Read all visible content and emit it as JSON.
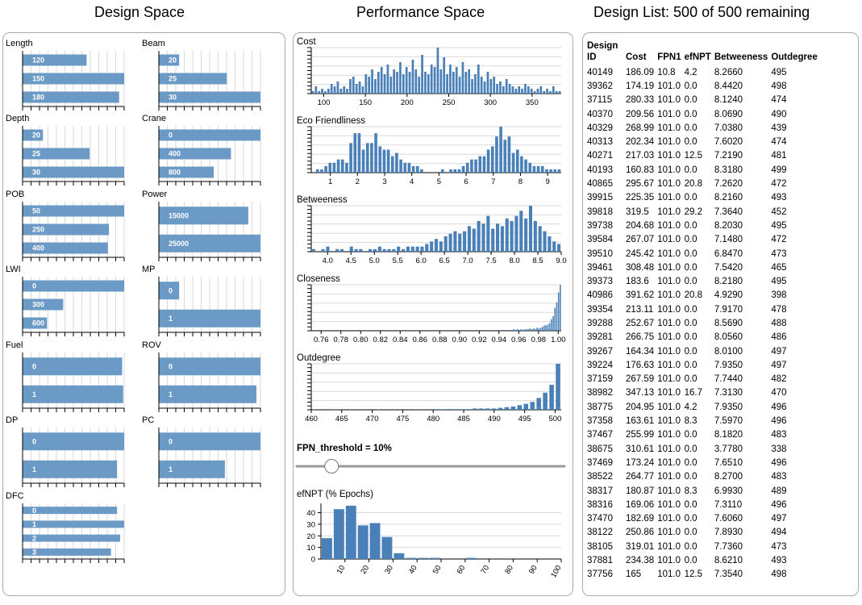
{
  "titles": {
    "design_space": "Design Space",
    "performance_space": "Performance Space",
    "design_list": "Design List: 500 of 500 remaining"
  },
  "colors": {
    "bar": "#6b9ac6",
    "hist": "#4a80b8",
    "axis": "#000000",
    "grid": "#d9d9d9",
    "slider_track": "#999999"
  },
  "design_space": [
    {
      "name": "Length",
      "bars": [
        {
          "label": "120",
          "value": 0.63
        },
        {
          "label": "150",
          "value": 1.0
        },
        {
          "label": "180",
          "value": 0.95
        }
      ]
    },
    {
      "name": "Beam",
      "bars": [
        {
          "label": "20",
          "value": 0.2
        },
        {
          "label": "25",
          "value": 0.67
        },
        {
          "label": "30",
          "value": 1.0
        }
      ]
    },
    {
      "name": "Depth",
      "bars": [
        {
          "label": "20",
          "value": 0.2
        },
        {
          "label": "25",
          "value": 0.66
        },
        {
          "label": "30",
          "value": 1.0
        }
      ]
    },
    {
      "name": "Crane",
      "bars": [
        {
          "label": "0",
          "value": 1.0
        },
        {
          "label": "400",
          "value": 0.71
        },
        {
          "label": "800",
          "value": 0.54
        }
      ]
    },
    {
      "name": "POB",
      "bars": [
        {
          "label": "50",
          "value": 1.0
        },
        {
          "label": "250",
          "value": 0.85
        },
        {
          "label": "400",
          "value": 0.84
        }
      ]
    },
    {
      "name": "Power",
      "bars": [
        {
          "label": "15000",
          "value": 0.88
        },
        {
          "label": "25000",
          "value": 1.0
        }
      ]
    },
    {
      "name": "LWI",
      "bars": [
        {
          "label": "0",
          "value": 1.0
        },
        {
          "label": "300",
          "value": 0.4
        },
        {
          "label": "600",
          "value": 0.24
        }
      ]
    },
    {
      "name": "MP",
      "bars": [
        {
          "label": "0",
          "value": 0.2
        },
        {
          "label": "1",
          "value": 1.0
        }
      ]
    },
    {
      "name": "Fuel",
      "bars": [
        {
          "label": "0",
          "value": 0.98
        },
        {
          "label": "1",
          "value": 0.99
        }
      ]
    },
    {
      "name": "ROV",
      "bars": [
        {
          "label": "0",
          "value": 1.0
        },
        {
          "label": "1",
          "value": 0.96
        }
      ]
    },
    {
      "name": "DP",
      "bars": [
        {
          "label": "0",
          "value": 1.0
        },
        {
          "label": "1",
          "value": 0.93
        }
      ]
    },
    {
      "name": "PC",
      "bars": [
        {
          "label": "0",
          "value": 1.0
        },
        {
          "label": "1",
          "value": 0.65
        }
      ]
    },
    {
      "name": "DFC",
      "bars": [
        {
          "label": "0",
          "value": 0.93
        },
        {
          "label": "1",
          "value": 1.0
        },
        {
          "label": "2",
          "value": 0.96
        },
        {
          "label": "3",
          "value": 0.87
        }
      ]
    }
  ],
  "performance_space": {
    "histograms": [
      {
        "name": "Cost",
        "domain": [
          85,
          385
        ],
        "ticks": [
          "100",
          "150",
          "200",
          "250",
          "300",
          "350"
        ],
        "values": [
          1,
          3,
          1,
          2,
          1,
          2,
          4,
          3,
          5,
          2,
          3,
          2,
          6,
          7,
          4,
          5,
          3,
          8,
          7,
          10,
          6,
          9,
          11,
          8,
          12,
          7,
          10,
          9,
          13,
          8,
          11,
          9,
          14,
          10,
          7,
          16,
          9,
          8,
          12,
          11,
          19,
          10,
          15,
          8,
          12,
          9,
          11,
          7,
          13,
          9,
          10,
          6,
          8,
          12,
          7,
          5,
          9,
          6,
          7,
          4,
          5,
          3,
          6,
          4,
          3,
          2,
          3,
          2,
          4,
          3,
          2,
          1,
          2,
          3,
          1,
          2,
          1,
          3,
          1,
          1
        ]
      },
      {
        "name": "Eco Friendliness",
        "domain": [
          0.3,
          9.5
        ],
        "ticks": [
          "1",
          "2",
          "3",
          "4",
          "5",
          "6",
          "7",
          "8",
          "9"
        ],
        "values": [
          0,
          1,
          1,
          2,
          3,
          3,
          4,
          4,
          3,
          9,
          12,
          12,
          7,
          9,
          9,
          12,
          8,
          7,
          7,
          5,
          6,
          4,
          3,
          3,
          2,
          2,
          1,
          0,
          0,
          0,
          0,
          1,
          0,
          1,
          1,
          1,
          2,
          3,
          4,
          4,
          5,
          5,
          7,
          8,
          11,
          14,
          10,
          11,
          6,
          7,
          5,
          4,
          3,
          2,
          2,
          2,
          1,
          1,
          1,
          1
        ]
      },
      {
        "name": "Betweeness",
        "domain": [
          3.65,
          9.0
        ],
        "ticks": [
          "4.0",
          "4.5",
          "5.0",
          "5.5",
          "6.0",
          "6.5",
          "7.0",
          "7.5",
          "8.0",
          "8.5",
          "9.0"
        ],
        "values": [
          1,
          0,
          1,
          2,
          0,
          1,
          1,
          0,
          2,
          1,
          1,
          0,
          1,
          1,
          2,
          1,
          1,
          1,
          2,
          1,
          2,
          2,
          2,
          2,
          3,
          4,
          5,
          4,
          6,
          7,
          8,
          7,
          8,
          10,
          9,
          12,
          11,
          14,
          9,
          11,
          10,
          13,
          12,
          14,
          16,
          13,
          18,
          12,
          10,
          8,
          6,
          4,
          3
        ]
      },
      {
        "name": "Closeness",
        "domain": [
          0.75,
          1.003
        ],
        "ticks": [
          "0.76",
          "0.78",
          "0.80",
          "0.82",
          "0.84",
          "0.86",
          "0.88",
          "0.90",
          "0.92",
          "0.94",
          "0.96",
          "0.98",
          "1.00"
        ],
        "values": [
          0,
          0,
          0,
          0,
          0,
          0,
          0,
          0,
          0,
          0,
          0,
          0,
          0,
          0,
          0,
          0,
          0,
          0,
          0,
          0,
          0,
          0,
          0,
          0,
          0,
          0,
          0,
          0,
          0,
          0,
          0,
          0,
          0,
          0,
          0,
          0,
          0,
          0,
          0,
          0,
          0,
          0,
          0,
          0,
          0,
          0,
          0,
          0,
          0,
          0,
          0,
          0,
          0,
          0,
          0,
          0,
          0,
          0,
          0,
          0,
          0,
          0,
          0,
          0,
          0,
          0,
          0,
          0,
          0,
          0,
          0,
          0,
          0,
          0,
          0,
          0,
          0,
          0,
          1,
          0,
          0,
          0,
          0,
          0,
          0,
          0,
          0,
          0,
          0,
          0,
          0,
          0,
          0,
          0,
          0,
          0,
          0,
          0,
          0,
          1,
          0,
          0,
          0,
          0,
          1,
          0,
          0,
          1,
          0,
          1,
          1,
          0,
          1,
          2,
          1,
          2,
          1,
          2,
          1,
          2,
          2,
          2,
          3,
          2,
          3,
          2,
          4,
          3,
          4,
          5,
          7,
          7,
          8,
          10,
          15,
          19,
          30,
          37,
          50,
          60
        ]
      },
      {
        "name": "Outdegree",
        "domain": [
          460,
          501
        ],
        "ticks": [
          "460",
          "465",
          "470",
          "475",
          "480",
          "485",
          "490",
          "495",
          "500"
        ],
        "values": [
          1,
          0,
          0,
          1,
          0,
          0,
          0,
          0,
          0,
          0,
          1,
          0,
          0,
          0,
          0,
          0,
          1,
          0,
          0,
          1,
          1,
          0,
          1,
          1,
          1,
          2,
          2,
          2,
          2,
          3,
          4,
          5,
          7,
          9,
          12,
          18,
          26,
          38,
          70
        ]
      }
    ],
    "threshold_label": "FPN_threshold = 10%",
    "slider": {
      "min": 0,
      "max": 100,
      "value": 10
    },
    "efnpt": {
      "title": "efNPT (% Epochs)",
      "xdomain": [
        0,
        100
      ],
      "ymax": 48,
      "yticks": [
        "0",
        "10",
        "20",
        "30",
        "40"
      ],
      "xticks": [
        "10",
        "20",
        "30",
        "40",
        "50",
        "60",
        "70",
        "80",
        "90",
        "100"
      ],
      "values": [
        18,
        43,
        46,
        29,
        31,
        19,
        5,
        1,
        1,
        1,
        0,
        0,
        1,
        0,
        0,
        0,
        0,
        0,
        0,
        0
      ]
    }
  },
  "design_list": {
    "columns": [
      "Design ID",
      "Cost",
      "FPN1",
      "efNPT",
      "Betweeness",
      "Outdegree"
    ],
    "rows": [
      [
        "40149",
        "186.09",
        "10.8",
        "4.2",
        "8.2660",
        "495"
      ],
      [
        "39362",
        "174.19",
        "101.0",
        "0.0",
        "8.4420",
        "498"
      ],
      [
        "37115",
        "280.33",
        "101.0",
        "0.0",
        "8.1240",
        "474"
      ],
      [
        "40370",
        "209.56",
        "101.0",
        "0.0",
        "8.0690",
        "490"
      ],
      [
        "40329",
        "268.99",
        "101.0",
        "0.0",
        "7.0380",
        "439"
      ],
      [
        "40313",
        "202.34",
        "101.0",
        "0.0",
        "7.6020",
        "474"
      ],
      [
        "40271",
        "217.03",
        "101.0",
        "12.5",
        "7.2190",
        "481"
      ],
      [
        "40193",
        "160.83",
        "101.0",
        "0.0",
        "8.3180",
        "499"
      ],
      [
        "40865",
        "295.67",
        "101.0",
        "20.8",
        "7.2620",
        "472"
      ],
      [
        "39915",
        "225.35",
        "101.0",
        "0.0",
        "8.2160",
        "493"
      ],
      [
        "39818",
        "319.5",
        "101.0",
        "29.2",
        "7.3640",
        "452"
      ],
      [
        "39738",
        "204.68",
        "101.0",
        "0.0",
        "8.2030",
        "495"
      ],
      [
        "39584",
        "267.07",
        "101.0",
        "0.0",
        "7.1480",
        "472"
      ],
      [
        "39510",
        "245.42",
        "101.0",
        "0.0",
        "6.8470",
        "473"
      ],
      [
        "39461",
        "308.48",
        "101.0",
        "0.0",
        "7.5420",
        "465"
      ],
      [
        "39373",
        "183.6",
        "101.0",
        "0.0",
        "8.2180",
        "495"
      ],
      [
        "40986",
        "391.62",
        "101.0",
        "20.8",
        "4.9290",
        "398"
      ],
      [
        "39354",
        "213.11",
        "101.0",
        "0.0",
        "7.9170",
        "478"
      ],
      [
        "39288",
        "252.67",
        "101.0",
        "0.0",
        "8.5690",
        "488"
      ],
      [
        "39281",
        "266.75",
        "101.0",
        "0.0",
        "8.0560",
        "486"
      ],
      [
        "39267",
        "164.34",
        "101.0",
        "0.0",
        "8.0100",
        "497"
      ],
      [
        "39224",
        "176.63",
        "101.0",
        "0.0",
        "7.9350",
        "497"
      ],
      [
        "37159",
        "267.59",
        "101.0",
        "0.0",
        "7.7440",
        "482"
      ],
      [
        "38982",
        "347.13",
        "101.0",
        "16.7",
        "7.3130",
        "470"
      ],
      [
        "38775",
        "204.95",
        "101.0",
        "4.2",
        "7.9350",
        "496"
      ],
      [
        "37358",
        "163.61",
        "101.0",
        "8.3",
        "7.5970",
        "496"
      ],
      [
        "37467",
        "255.99",
        "101.0",
        "0.0",
        "8.1820",
        "483"
      ],
      [
        "38675",
        "310.61",
        "101.0",
        "0.0",
        "3.7780",
        "338"
      ],
      [
        "37469",
        "173.24",
        "101.0",
        "0.0",
        "7.6510",
        "496"
      ],
      [
        "38522",
        "264.77",
        "101.0",
        "0.0",
        "8.2700",
        "483"
      ],
      [
        "38317",
        "180.87",
        "101.0",
        "8.3",
        "6.9930",
        "489"
      ],
      [
        "38316",
        "169.06",
        "101.0",
        "0.0",
        "7.3110",
        "496"
      ],
      [
        "37470",
        "182.69",
        "101.0",
        "0.0",
        "7.6060",
        "497"
      ],
      [
        "38122",
        "250.86",
        "101.0",
        "0.0",
        "7.8930",
        "494"
      ],
      [
        "38105",
        "319.01",
        "101.0",
        "0.0",
        "7.7360",
        "473"
      ],
      [
        "37881",
        "234.38",
        "101.0",
        "0.0",
        "8.6210",
        "493"
      ],
      [
        "37756",
        "165",
        "101.0",
        "12.5",
        "7.3540",
        "498"
      ]
    ]
  }
}
